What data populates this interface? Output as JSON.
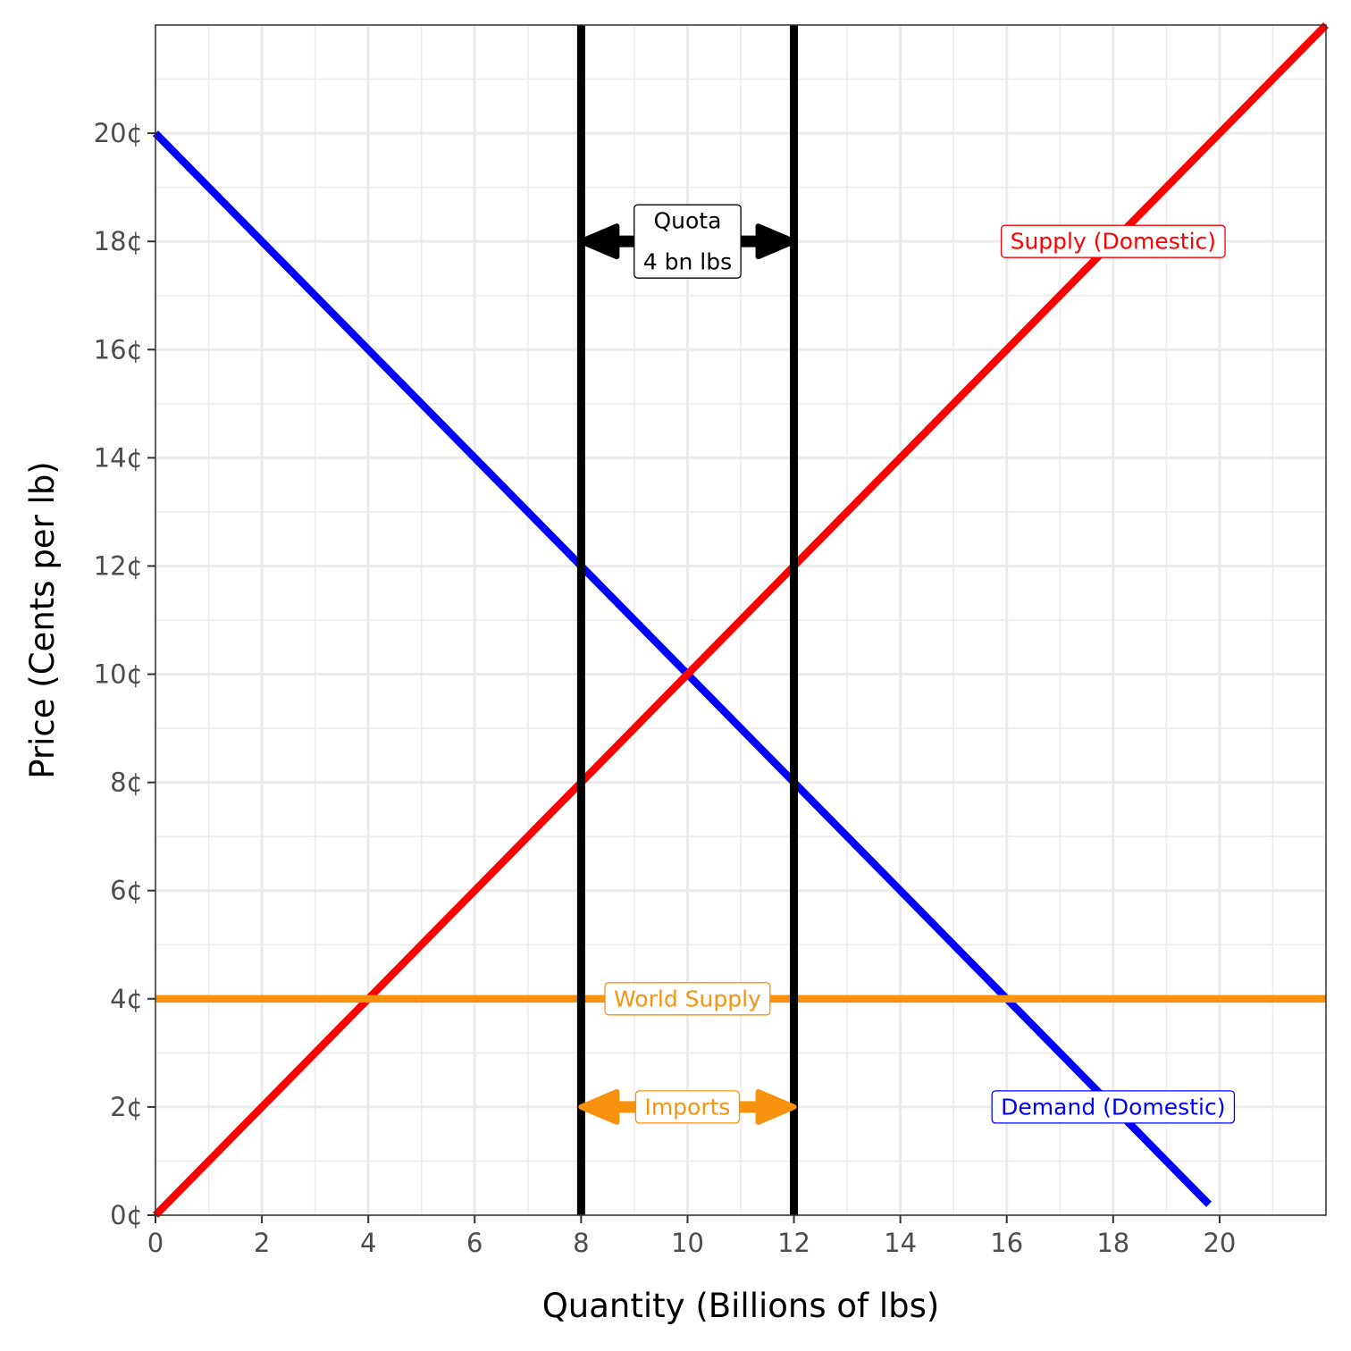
{
  "chart_data": {
    "type": "line",
    "xlabel": "Quantity (Billions of lbs)",
    "ylabel": "Price (Cents per lb)",
    "xlim": [
      0,
      22
    ],
    "ylim": [
      0,
      22
    ],
    "x_ticks": [
      0,
      2,
      4,
      6,
      8,
      10,
      12,
      14,
      16,
      18,
      20
    ],
    "x_tick_labels": [
      "0",
      "2",
      "4",
      "6",
      "8",
      "10",
      "12",
      "14",
      "16",
      "18",
      "20"
    ],
    "y_ticks": [
      0,
      2,
      4,
      6,
      8,
      10,
      12,
      14,
      16,
      18,
      20
    ],
    "y_tick_labels": [
      "0¢",
      "2¢",
      "4¢",
      "6¢",
      "8¢",
      "10¢",
      "12¢",
      "14¢",
      "16¢",
      "18¢",
      "20¢"
    ],
    "grid": true,
    "series": [
      {
        "key": "demand",
        "color": "#0000ff",
        "x": [
          0,
          19.8
        ],
        "y": [
          20,
          0.2
        ]
      },
      {
        "key": "supply",
        "color": "#ff0000",
        "x": [
          0,
          22
        ],
        "y": [
          0,
          22
        ]
      },
      {
        "key": "world_supply",
        "color": "#f7920e",
        "x": [
          0,
          22
        ],
        "y": [
          4,
          4
        ]
      },
      {
        "key": "quota_left",
        "color": "#000000",
        "x": [
          8,
          8
        ],
        "y": [
          0,
          22
        ]
      },
      {
        "key": "quota_right",
        "color": "#000000",
        "x": [
          12,
          12
        ],
        "y": [
          0,
          22
        ]
      }
    ],
    "annotations": {
      "supply_label": {
        "lines": [
          "Supply (Domestic)"
        ],
        "color": "#ff0000",
        "x": 18,
        "y": 18
      },
      "demand_label": {
        "lines": [
          "Demand (Domestic)"
        ],
        "color": "#0000ff",
        "x": 18,
        "y": 2
      },
      "world_label": {
        "lines": [
          "World Supply"
        ],
        "color": "#f7920e",
        "x": 10,
        "y": 4
      },
      "imports_label": {
        "lines": [
          "Imports"
        ],
        "color": "#f7920e",
        "x": 10,
        "y": 2
      },
      "quota_label": {
        "lines": [
          "Quota",
          "4 bn lbs"
        ],
        "color": "#000000",
        "x": 10,
        "y": 18
      }
    },
    "arrows": [
      {
        "key": "quota_arrow",
        "color": "#000000",
        "x_from": 8,
        "x_to": 12,
        "y": 18
      },
      {
        "key": "imports_arrow",
        "color": "#f7920e",
        "x_from": 8,
        "x_to": 12,
        "y": 2
      }
    ]
  }
}
